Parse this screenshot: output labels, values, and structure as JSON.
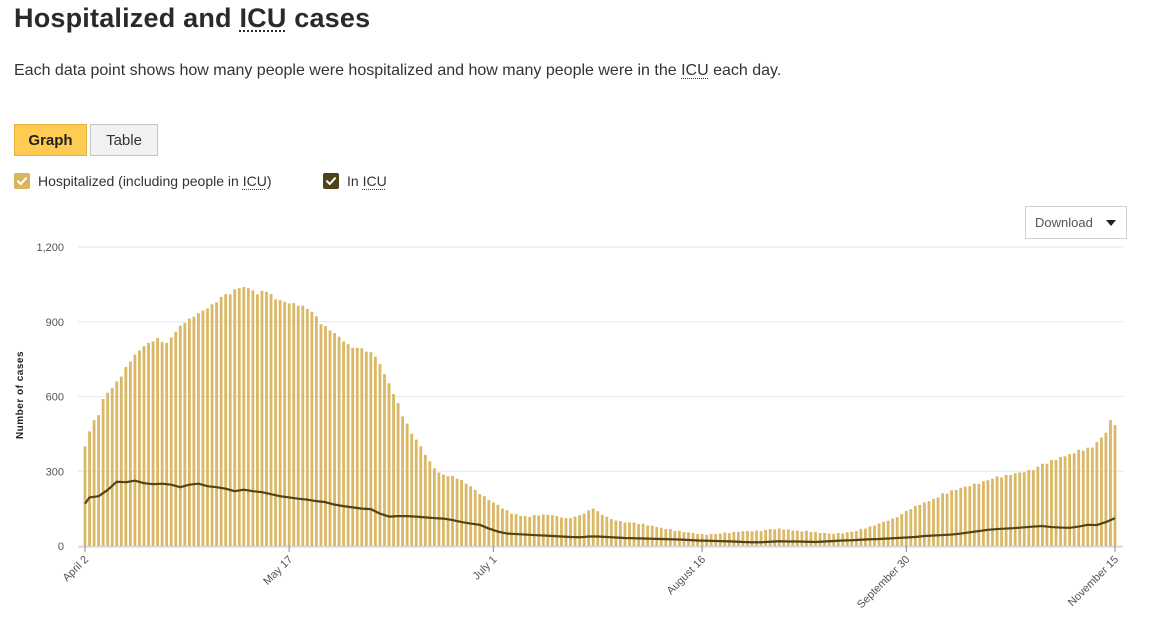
{
  "heading": {
    "before": "Hospitalized and ",
    "abbr": "ICU",
    "after": " cases"
  },
  "description": {
    "before": "Each data point shows how many people were hospitalized and how many people were in the ",
    "abbr": "ICU",
    "after": " each day."
  },
  "view_toggle": {
    "graph_label": "Graph",
    "table_label": "Table",
    "selected": "Graph"
  },
  "legend": [
    {
      "label_before": "Hospitalized (including people in ",
      "abbr": "ICU",
      "label_after": ")",
      "checked": true,
      "color": "#d9b65c"
    },
    {
      "label_before": "In ",
      "abbr": "ICU",
      "label_after": "",
      "checked": true,
      "color": "#4f4318"
    }
  ],
  "download": {
    "label": "Download",
    "icon": "caret-down-icon"
  },
  "colors": {
    "bar": "#dbb865",
    "line": "#4f4318",
    "grid": "#e6e6e6",
    "accent": "#ffcb52"
  },
  "chart_data": {
    "type": "bar",
    "title": "Hospitalized and ICU cases",
    "xlabel": "",
    "ylabel": "Number of cases",
    "ylim": [
      0,
      1200
    ],
    "yticks": [
      0,
      300,
      600,
      900,
      1200
    ],
    "ytick_labels": [
      "0",
      "300",
      "600",
      "900",
      "1,200"
    ],
    "grid": true,
    "start_date": "2020-04-02",
    "end_date": "2020-11-15",
    "xticks": [
      {
        "label": "April 2",
        "day_index": 0
      },
      {
        "label": "May 17",
        "day_index": 45
      },
      {
        "label": "July 1",
        "day_index": 90
      },
      {
        "label": "August 16",
        "day_index": 136
      },
      {
        "label": "September 30",
        "day_index": 181
      },
      {
        "label": "November 15",
        "day_index": 227
      }
    ],
    "series": [
      {
        "name": "Hospitalized (including people in ICU)",
        "type": "bar",
        "anchors": [
          [
            0,
            400
          ],
          [
            1,
            460
          ],
          [
            2,
            505
          ],
          [
            3,
            525
          ],
          [
            4,
            590
          ],
          [
            5,
            615
          ],
          [
            6,
            635
          ],
          [
            8,
            680
          ],
          [
            10,
            740
          ],
          [
            12,
            785
          ],
          [
            14,
            815
          ],
          [
            16,
            835
          ],
          [
            18,
            815
          ],
          [
            20,
            860
          ],
          [
            22,
            895
          ],
          [
            24,
            920
          ],
          [
            26,
            945
          ],
          [
            28,
            970
          ],
          [
            30,
            1000
          ],
          [
            32,
            1010
          ],
          [
            34,
            1035
          ],
          [
            36,
            1035
          ],
          [
            38,
            1010
          ],
          [
            40,
            1020
          ],
          [
            42,
            990
          ],
          [
            44,
            980
          ],
          [
            46,
            975
          ],
          [
            48,
            965
          ],
          [
            50,
            940
          ],
          [
            52,
            890
          ],
          [
            54,
            865
          ],
          [
            56,
            840
          ],
          [
            58,
            810
          ],
          [
            60,
            795
          ],
          [
            62,
            780
          ],
          [
            64,
            760
          ],
          [
            66,
            690
          ],
          [
            68,
            610
          ],
          [
            70,
            520
          ],
          [
            72,
            450
          ],
          [
            74,
            400
          ],
          [
            76,
            340
          ],
          [
            78,
            295
          ],
          [
            80,
            280
          ],
          [
            82,
            270
          ],
          [
            84,
            250
          ],
          [
            86,
            225
          ],
          [
            88,
            200
          ],
          [
            90,
            175
          ],
          [
            92,
            150
          ],
          [
            94,
            130
          ],
          [
            96,
            120
          ],
          [
            98,
            117
          ],
          [
            100,
            122
          ],
          [
            102,
            125
          ],
          [
            104,
            120
          ],
          [
            106,
            112
          ],
          [
            108,
            118
          ],
          [
            110,
            130
          ],
          [
            112,
            150
          ],
          [
            114,
            125
          ],
          [
            116,
            108
          ],
          [
            118,
            100
          ],
          [
            120,
            95
          ],
          [
            122,
            88
          ],
          [
            124,
            82
          ],
          [
            126,
            76
          ],
          [
            128,
            68
          ],
          [
            130,
            60
          ],
          [
            132,
            56
          ],
          [
            134,
            52
          ],
          [
            136,
            48
          ],
          [
            138,
            48
          ],
          [
            140,
            50
          ],
          [
            142,
            52
          ],
          [
            144,
            57
          ],
          [
            146,
            60
          ],
          [
            148,
            62
          ],
          [
            150,
            64
          ],
          [
            152,
            67
          ],
          [
            154,
            66
          ],
          [
            156,
            62
          ],
          [
            158,
            58
          ],
          [
            160,
            56
          ],
          [
            162,
            52
          ],
          [
            164,
            50
          ],
          [
            166,
            52
          ],
          [
            168,
            55
          ],
          [
            170,
            60
          ],
          [
            172,
            70
          ],
          [
            174,
            82
          ],
          [
            176,
            97
          ],
          [
            178,
            110
          ],
          [
            180,
            128
          ],
          [
            182,
            148
          ],
          [
            184,
            165
          ],
          [
            186,
            180
          ],
          [
            188,
            195
          ],
          [
            190,
            210
          ],
          [
            192,
            225
          ],
          [
            194,
            238
          ],
          [
            196,
            250
          ],
          [
            198,
            260
          ],
          [
            200,
            270
          ],
          [
            202,
            275
          ],
          [
            204,
            285
          ],
          [
            206,
            295
          ],
          [
            208,
            305
          ],
          [
            210,
            318
          ],
          [
            212,
            330
          ],
          [
            214,
            345
          ],
          [
            216,
            360
          ],
          [
            218,
            372
          ],
          [
            220,
            382
          ],
          [
            222,
            395
          ],
          [
            224,
            435
          ],
          [
            225,
            455
          ],
          [
            226,
            505
          ],
          [
            227,
            485
          ]
        ],
        "jitter": [
          0,
          6,
          -4,
          8,
          -2,
          5,
          -7,
          3,
          -5,
          9,
          -3,
          6,
          -8,
          2,
          7,
          -4,
          4,
          -6,
          8,
          -1,
          -5,
          7,
          -3,
          5,
          -9,
          2,
          6,
          -4,
          3,
          -7
        ]
      },
      {
        "name": "In ICU",
        "type": "line",
        "anchors": [
          [
            0,
            170
          ],
          [
            1,
            195
          ],
          [
            3,
            200
          ],
          [
            5,
            225
          ],
          [
            7,
            258
          ],
          [
            9,
            256
          ],
          [
            11,
            262
          ],
          [
            13,
            252
          ],
          [
            15,
            248
          ],
          [
            17,
            250
          ],
          [
            19,
            246
          ],
          [
            21,
            236
          ],
          [
            23,
            246
          ],
          [
            25,
            250
          ],
          [
            27,
            240
          ],
          [
            29,
            236
          ],
          [
            31,
            230
          ],
          [
            33,
            220
          ],
          [
            35,
            226
          ],
          [
            37,
            220
          ],
          [
            39,
            216
          ],
          [
            41,
            208
          ],
          [
            43,
            200
          ],
          [
            45,
            195
          ],
          [
            47,
            190
          ],
          [
            49,
            186
          ],
          [
            51,
            180
          ],
          [
            53,
            176
          ],
          [
            55,
            166
          ],
          [
            57,
            160
          ],
          [
            59,
            155
          ],
          [
            61,
            150
          ],
          [
            63,
            148
          ],
          [
            65,
            130
          ],
          [
            67,
            118
          ],
          [
            69,
            120
          ],
          [
            71,
            120
          ],
          [
            73,
            118
          ],
          [
            75,
            115
          ],
          [
            77,
            112
          ],
          [
            79,
            110
          ],
          [
            81,
            104
          ],
          [
            83,
            96
          ],
          [
            85,
            90
          ],
          [
            87,
            85
          ],
          [
            89,
            70
          ],
          [
            91,
            58
          ],
          [
            93,
            50
          ],
          [
            95,
            48
          ],
          [
            97,
            46
          ],
          [
            99,
            44
          ],
          [
            101,
            42
          ],
          [
            103,
            40
          ],
          [
            105,
            38
          ],
          [
            107,
            36
          ],
          [
            109,
            35
          ],
          [
            111,
            38
          ],
          [
            113,
            38
          ],
          [
            115,
            36
          ],
          [
            117,
            34
          ],
          [
            119,
            32
          ],
          [
            121,
            31
          ],
          [
            123,
            30
          ],
          [
            125,
            29
          ],
          [
            127,
            28
          ],
          [
            129,
            27
          ],
          [
            131,
            26
          ],
          [
            133,
            24
          ],
          [
            135,
            22
          ],
          [
            137,
            21
          ],
          [
            139,
            20
          ],
          [
            141,
            19
          ],
          [
            143,
            18
          ],
          [
            145,
            16
          ],
          [
            147,
            15
          ],
          [
            149,
            15
          ],
          [
            151,
            17
          ],
          [
            153,
            19
          ],
          [
            155,
            18
          ],
          [
            157,
            18
          ],
          [
            159,
            17
          ],
          [
            161,
            16
          ],
          [
            163,
            18
          ],
          [
            165,
            20
          ],
          [
            167,
            22
          ],
          [
            169,
            23
          ],
          [
            171,
            25
          ],
          [
            173,
            27
          ],
          [
            175,
            28
          ],
          [
            177,
            30
          ],
          [
            179,
            32
          ],
          [
            181,
            34
          ],
          [
            183,
            36
          ],
          [
            185,
            40
          ],
          [
            187,
            42
          ],
          [
            189,
            44
          ],
          [
            191,
            46
          ],
          [
            193,
            50
          ],
          [
            195,
            55
          ],
          [
            197,
            60
          ],
          [
            199,
            65
          ],
          [
            201,
            68
          ],
          [
            203,
            70
          ],
          [
            205,
            72
          ],
          [
            207,
            75
          ],
          [
            209,
            78
          ],
          [
            211,
            80
          ],
          [
            213,
            76
          ],
          [
            215,
            74
          ],
          [
            217,
            73
          ],
          [
            219,
            78
          ],
          [
            221,
            85
          ],
          [
            223,
            84
          ],
          [
            225,
            96
          ],
          [
            226,
            104
          ],
          [
            227,
            112
          ]
        ],
        "note": "Daily values between anchors are interpolated; jitter applied to daily bar values."
      }
    ]
  }
}
